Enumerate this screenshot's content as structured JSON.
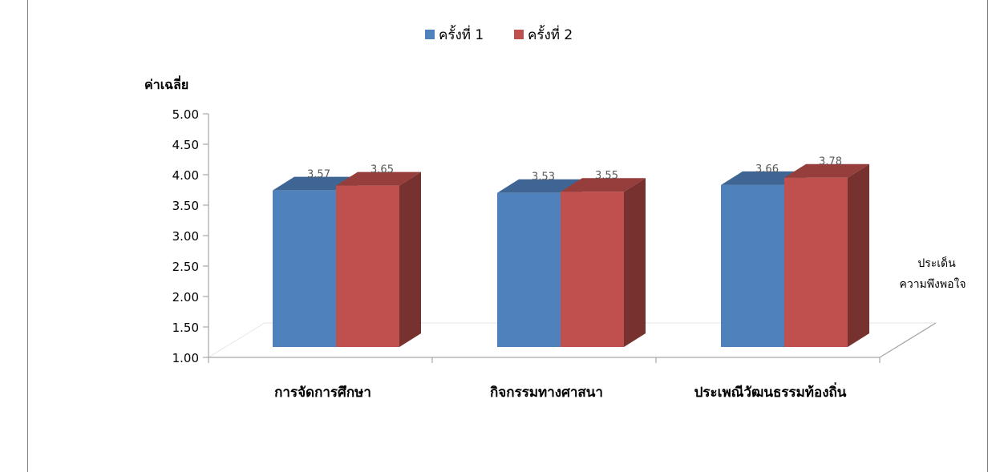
{
  "chart_data": {
    "type": "bar",
    "ylabel": "ค่าเฉลี่ย",
    "xlabel_lines": [
      "ประเด็น",
      "ความพึงพอใจ"
    ],
    "categories": [
      "การจัดการศึกษา",
      "กิจกรรมทางศาสนา",
      "ประเพณีวัฒนธรรมท้องถิ่น"
    ],
    "series": [
      {
        "name": "ครั้งที่ 1",
        "values": [
          3.57,
          3.53,
          3.66
        ],
        "color": "#4f81bd"
      },
      {
        "name": "ครั้งที่ 2",
        "values": [
          3.65,
          3.55,
          3.78
        ],
        "color": "#c0504d"
      }
    ],
    "ylim": [
      1.0,
      5.0
    ],
    "yticks": [
      "1.00",
      "1.50",
      "2.00",
      "2.50",
      "3.00",
      "3.50",
      "4.00",
      "4.50",
      "5.00"
    ],
    "grid": false,
    "legend": "top-center",
    "style": "3d-column"
  }
}
